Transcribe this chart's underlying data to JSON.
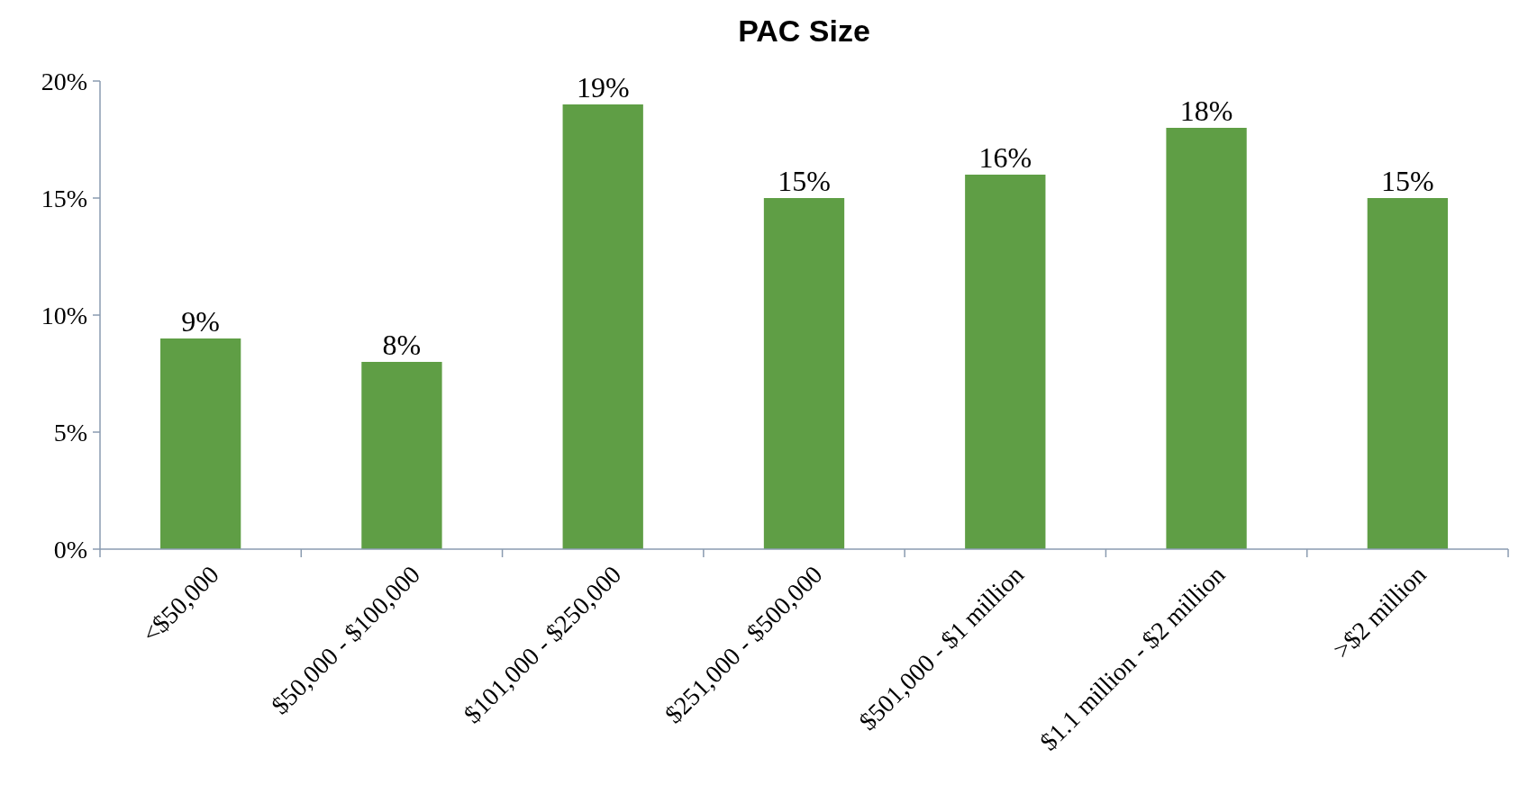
{
  "chart_data": {
    "type": "bar",
    "title": "PAC Size",
    "categories": [
      "<$50,000",
      "$50,000 - $100,000",
      "$101,000 - $250,000",
      "$251,000 - $500,000",
      "$501,000 - $1 million",
      "$1.1 million - $2 million",
      ">$2 million"
    ],
    "values": [
      9,
      8,
      19,
      15,
      16,
      18,
      15
    ],
    "value_labels": [
      "9%",
      "8%",
      "19%",
      "15%",
      "16%",
      "18%",
      "15%"
    ],
    "color": "#5f9e45",
    "ylim": [
      0,
      20
    ],
    "yticks": [
      {
        "value": 0,
        "label": "0%"
      },
      {
        "value": 5,
        "label": "5%"
      },
      {
        "value": 10,
        "label": "10%"
      },
      {
        "value": 15,
        "label": "15%"
      },
      {
        "value": 20,
        "label": "20%"
      }
    ],
    "grid": false
  }
}
